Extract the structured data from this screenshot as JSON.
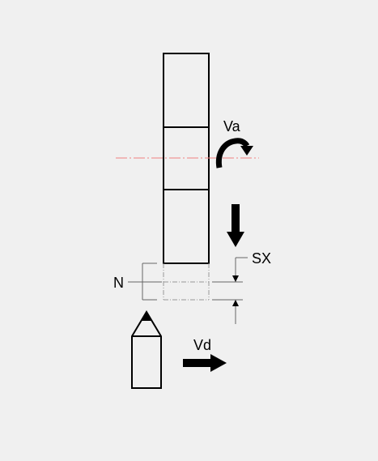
{
  "labels": {
    "rotation": "Va",
    "feed": "Vd",
    "stock": "SX",
    "dimension": "N"
  },
  "colors": {
    "background": "#f0f0f0",
    "line": "#000000",
    "centerline": "#f08080",
    "hidden_line": "#999999"
  },
  "icons": {
    "rotation": "curved-arrow-icon",
    "down": "arrow-down-icon",
    "right": "arrow-right-icon"
  }
}
